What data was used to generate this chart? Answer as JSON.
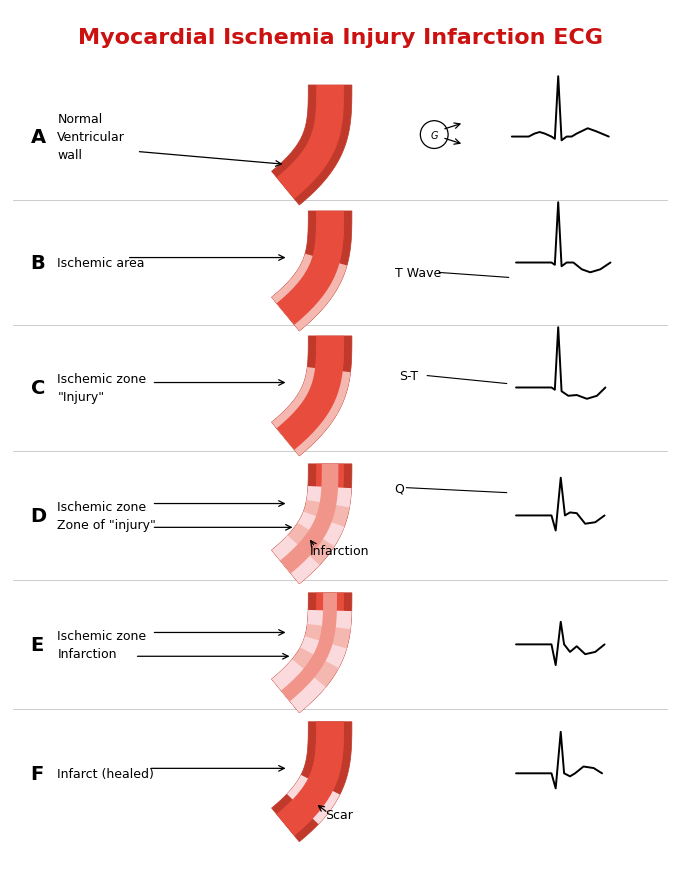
{
  "title": "Myocardial Ischemia Injury Infarction ECG",
  "title_color": "#cc1111",
  "title_fontsize": 16,
  "background_color": "#ffffff",
  "rows": [
    {
      "label": "A",
      "description": "Normal\nVentricular\nwall",
      "ecg_type": "normal",
      "vessel_type": "normal",
      "annotation": "",
      "annotation2": "",
      "has_circle_arrow": true
    },
    {
      "label": "B",
      "description": "Ischemic area",
      "ecg_type": "t_inversion",
      "vessel_type": "ischemic_b",
      "annotation": "T Wave",
      "annotation2": "",
      "has_circle_arrow": false
    },
    {
      "label": "C",
      "description": "Ischemic zone\n\"Injury\"",
      "ecg_type": "st_depression",
      "vessel_type": "ischemic_c",
      "annotation": "S-T",
      "annotation2": "",
      "has_circle_arrow": false
    },
    {
      "label": "D",
      "description": "Ischemic zone\nZone of \"injury\"",
      "ecg_type": "q_wave",
      "vessel_type": "infarction_d",
      "annotation": "Q",
      "annotation2": "Infarction",
      "has_circle_arrow": false
    },
    {
      "label": "E",
      "description": "Ischemic zone\nInfarction",
      "ecg_type": "deep_q",
      "vessel_type": "infarction_e",
      "annotation": "",
      "annotation2": "",
      "has_circle_arrow": false
    },
    {
      "label": "F",
      "description": "Infarct (healed)",
      "ecg_type": "healed",
      "vessel_type": "scar_f",
      "annotation": "Scar",
      "annotation2": "",
      "has_circle_arrow": false
    }
  ],
  "dark_red": "#c0392b",
  "med_red": "#e74c3c",
  "light_red": "#f1948a",
  "pink": "#f4b8b0",
  "pale_pink": "#fadadd",
  "very_pale": "#fef0f0"
}
